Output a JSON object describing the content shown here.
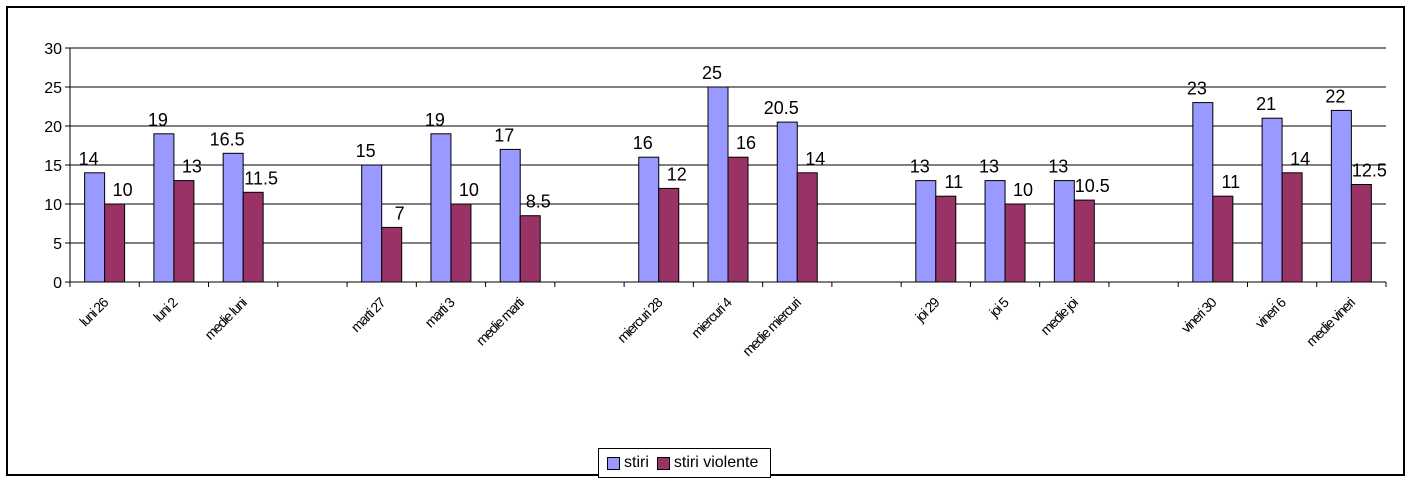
{
  "chart_data": {
    "type": "bar",
    "categories": [
      "luni 26",
      "luni 2",
      "medie luni",
      "",
      "marti 27",
      "marti 3",
      "medie marti",
      "",
      "miercuri 28",
      "miercuri 4",
      "medie miercuri",
      "",
      "joi 29",
      "joi 5",
      "medie joi",
      "",
      "vineri 30",
      "vineri 6",
      "medie vineri"
    ],
    "series": [
      {
        "name": "stiri",
        "color": "#9999ff",
        "values": [
          14,
          19,
          16.5,
          null,
          15,
          19,
          17,
          null,
          16,
          25,
          20.5,
          null,
          13,
          13,
          13,
          null,
          23,
          21,
          22
        ]
      },
      {
        "name": "stiri violente",
        "color": "#993366",
        "values": [
          10,
          13,
          11.5,
          null,
          7,
          10,
          8.5,
          null,
          12,
          16,
          14,
          null,
          11,
          10,
          10.5,
          null,
          11,
          14,
          12.5
        ]
      }
    ],
    "ylim": [
      0,
      30
    ],
    "yticks": [
      "0",
      "5",
      "10",
      "15",
      "20",
      "25",
      "30"
    ],
    "grid": true,
    "legend_position": "bottom"
  }
}
